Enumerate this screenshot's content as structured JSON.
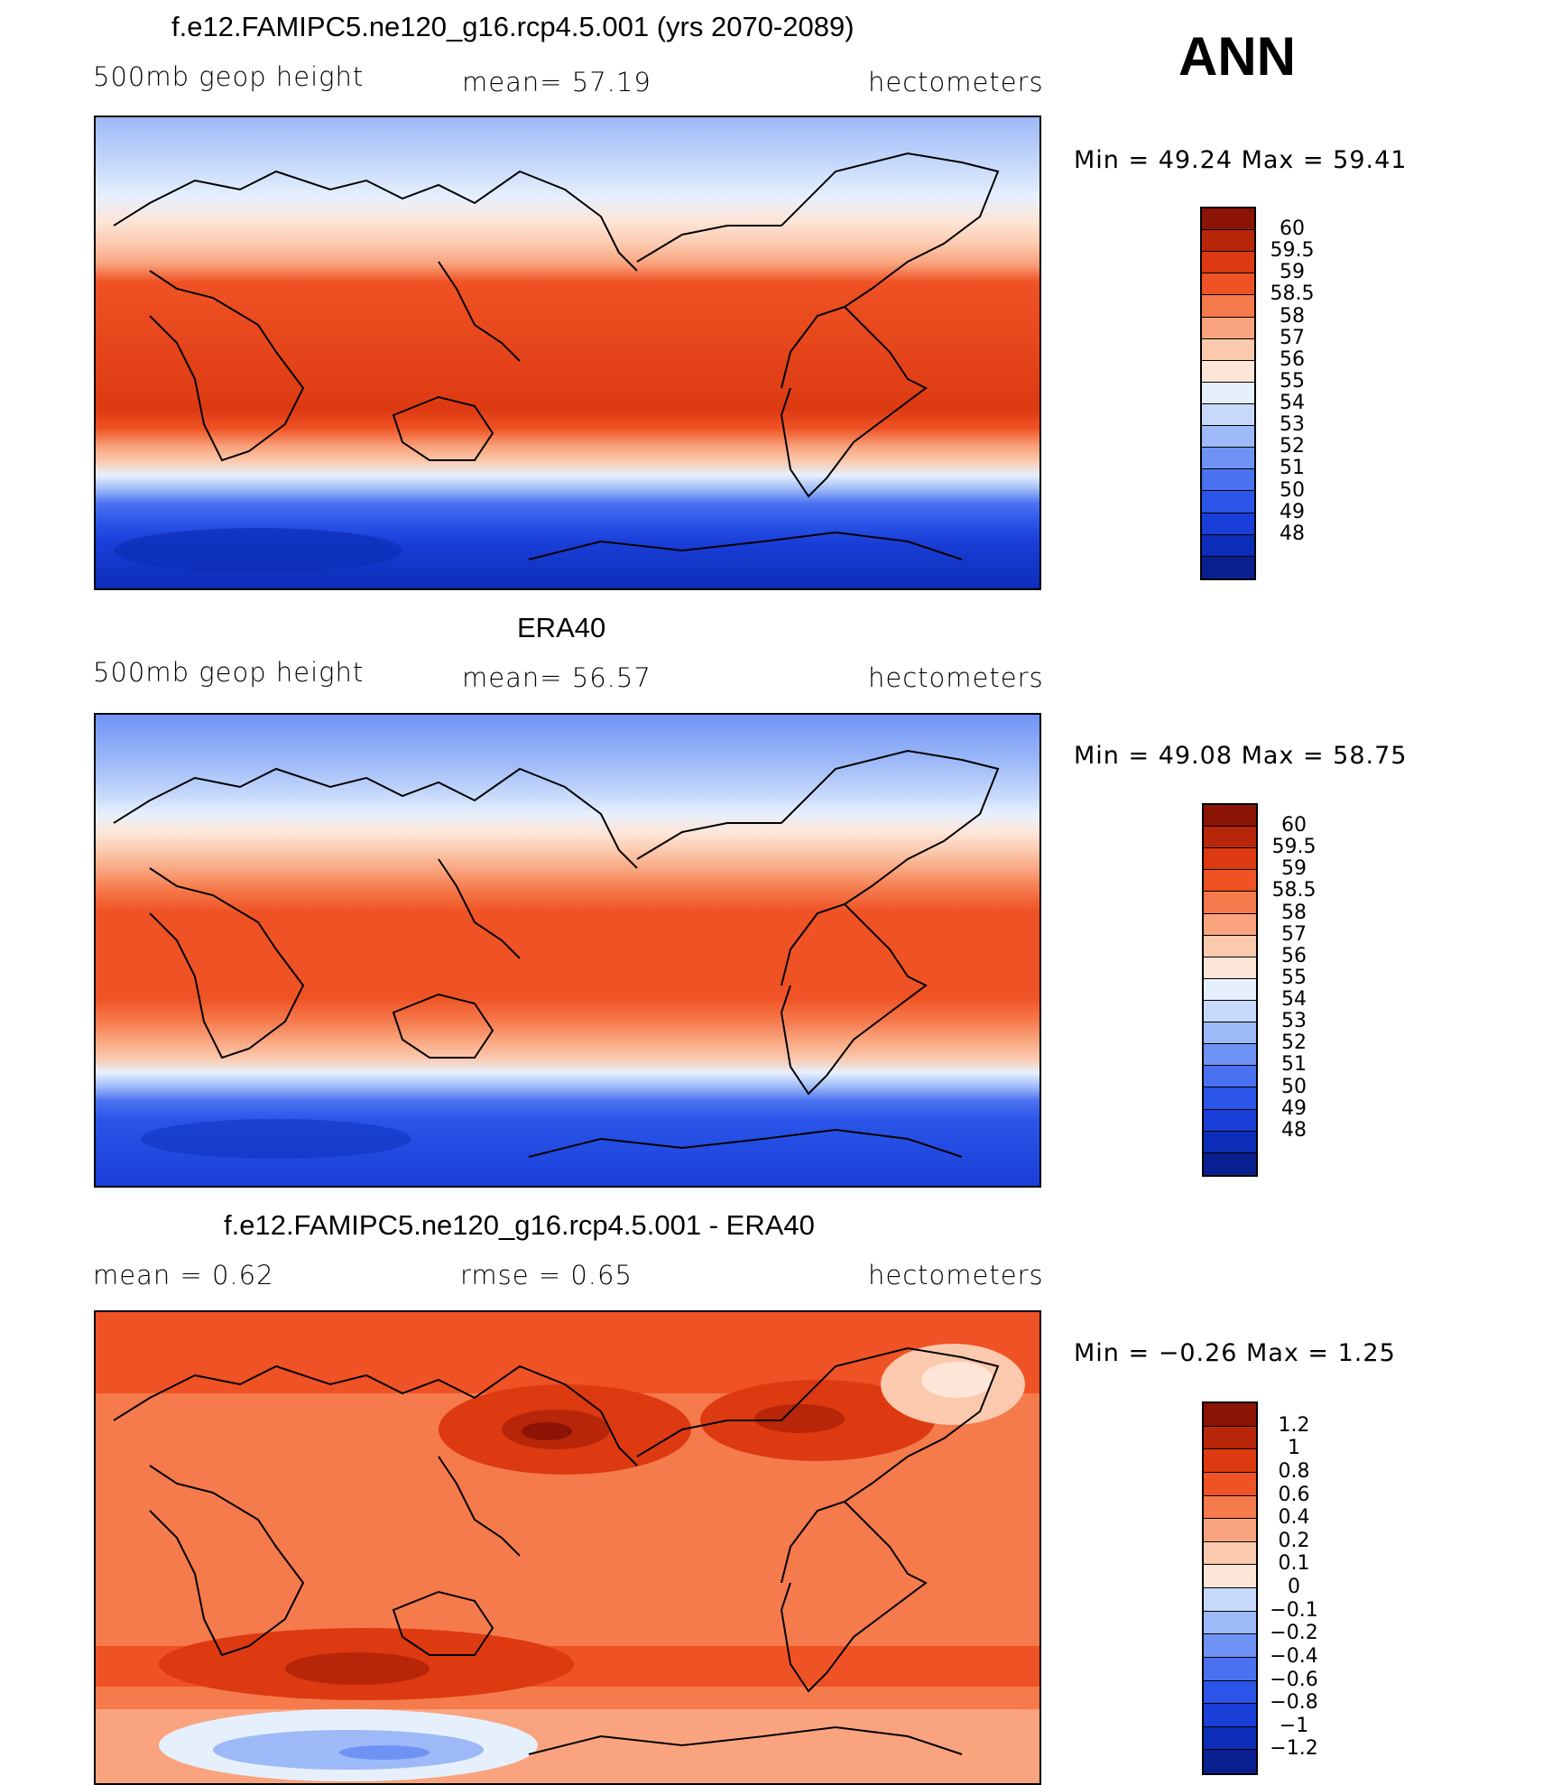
{
  "season": "ANN",
  "colors": {
    "abs": [
      "#0a1f8f",
      "#0c2db7",
      "#1a3fd9",
      "#2a55e8",
      "#4a72f0",
      "#6f93f5",
      "#9db9f8",
      "#c6d9fb",
      "#e6f0fd",
      "#fde6d8",
      "#fbc9ad",
      "#f9a47e",
      "#f57a4c",
      "#ef5224",
      "#dd3a12",
      "#b82609",
      "#8c1405"
    ],
    "diff": [
      "#0a1f8f",
      "#0c2db7",
      "#1a3fd9",
      "#2a55e8",
      "#4a72f0",
      "#6f93f5",
      "#9db9f8",
      "#c6d9fb",
      "#fde6d8",
      "#fbc9ad",
      "#f9a47e",
      "#f57a4c",
      "#ef5224",
      "#dd3a12",
      "#b82609",
      "#8c1405"
    ]
  },
  "panels": [
    {
      "title": "f.e12.FAMIPC5.ne120_g16.rcp4.5.001 (yrs 2070-2089)",
      "left": "500mb  geop  height",
      "center": "mean=   57.19",
      "right": "hectometers",
      "minmax": "Min  =    49.24  Max  =    59.41",
      "levels": [
        "60",
        "59.5",
        "59",
        "58.5",
        "58",
        "57",
        "56",
        "55",
        "54",
        "53",
        "52",
        "51",
        "50",
        "49",
        "48"
      ]
    },
    {
      "title": "ERA40",
      "left": "500mb  geop  height",
      "center": "mean=   56.57",
      "right": "hectometers",
      "minmax": "Min  =    49.08  Max  =    58.75",
      "levels": [
        "60",
        "59.5",
        "59",
        "58.5",
        "58",
        "57",
        "56",
        "55",
        "54",
        "53",
        "52",
        "51",
        "50",
        "49",
        "48"
      ]
    },
    {
      "title": "f.e12.FAMIPC5.ne120_g16.rcp4.5.001 - ERA40",
      "left": "mean  =     0.62",
      "center": "rmse  =     0.65",
      "right": "hectometers",
      "minmax": "Min  =    −0.26  Max  =      1.25",
      "levels": [
        "1.2",
        "1",
        "0.8",
        "0.6",
        "0.4",
        "0.2",
        "0.1",
        "0",
        "−0.1",
        "−0.2",
        "−0.4",
        "−0.6",
        "−0.8",
        "−1",
        "−1.2"
      ]
    }
  ]
}
